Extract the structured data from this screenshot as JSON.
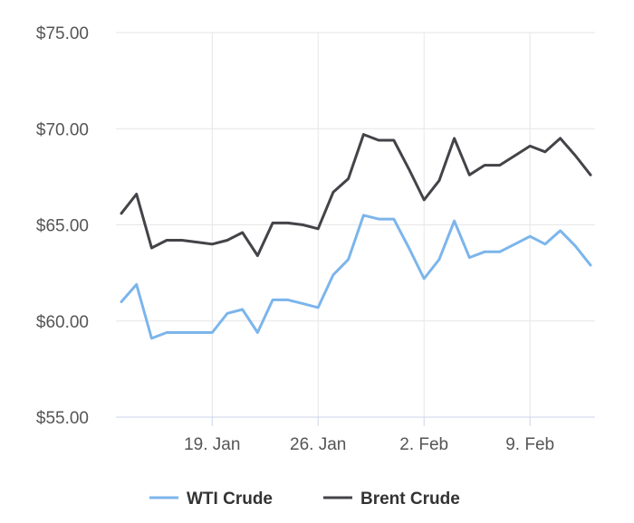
{
  "chart_data": {
    "type": "line",
    "title": "",
    "xlabel": "",
    "ylabel": "",
    "ylim": [
      55,
      75
    ],
    "y_ticks": [
      "$55.00",
      "$60.00",
      "$65.00",
      "$70.00",
      "$75.00"
    ],
    "x_ticks": [
      "19. Jan",
      "26. Jan",
      "2. Feb",
      "9. Feb"
    ],
    "grid": true,
    "legend_placement": "bottom",
    "x": [
      "2019-01-13",
      "2019-01-14",
      "2019-01-15",
      "2019-01-16",
      "2019-01-17",
      "2019-01-18",
      "2019-01-19",
      "2019-01-20",
      "2019-01-21",
      "2019-01-22",
      "2019-01-23",
      "2019-01-24",
      "2019-01-25",
      "2019-01-26",
      "2019-01-27",
      "2019-01-28",
      "2019-01-29",
      "2019-01-30",
      "2019-01-31",
      "2019-02-01",
      "2019-02-02",
      "2019-02-03",
      "2019-02-04",
      "2019-02-05",
      "2019-02-06",
      "2019-02-07",
      "2019-02-08",
      "2019-02-09",
      "2019-02-10",
      "2019-02-11",
      "2019-02-12",
      "2019-02-13"
    ],
    "series": [
      {
        "name": "WTI Crude",
        "color": "#7cb5ec",
        "values": [
          61.0,
          61.9,
          59.1,
          59.4,
          59.4,
          59.4,
          59.4,
          60.4,
          60.6,
          59.4,
          61.1,
          61.1,
          60.9,
          60.7,
          62.4,
          63.2,
          65.5,
          65.3,
          65.3,
          63.8,
          62.2,
          63.2,
          65.2,
          63.3,
          63.6,
          63.6,
          64.0,
          64.4,
          64.0,
          64.7,
          63.9,
          62.9
        ]
      },
      {
        "name": "Brent Crude",
        "color": "#434348",
        "values": [
          65.6,
          66.6,
          63.8,
          64.2,
          64.2,
          64.1,
          64.0,
          64.2,
          64.6,
          63.4,
          65.1,
          65.1,
          65.0,
          64.8,
          66.7,
          67.4,
          69.7,
          69.4,
          69.4,
          67.9,
          66.3,
          67.3,
          69.5,
          67.6,
          68.1,
          68.1,
          68.6,
          69.1,
          68.8,
          69.5,
          68.6,
          67.6
        ]
      }
    ]
  }
}
